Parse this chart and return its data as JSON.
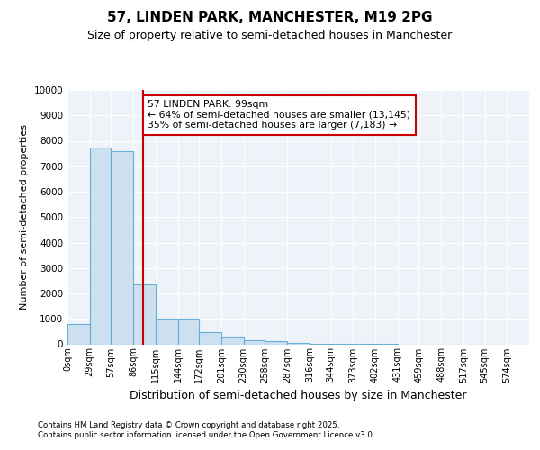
{
  "title1": "57, LINDEN PARK, MANCHESTER, M19 2PG",
  "title2": "Size of property relative to semi-detached houses in Manchester",
  "xlabel": "Distribution of semi-detached houses by size in Manchester",
  "ylabel": "Number of semi-detached properties",
  "annotation_line1": "57 LINDEN PARK: 99sqm",
  "annotation_line2": "← 64% of semi-detached houses are smaller (13,145)",
  "annotation_line3": "35% of semi-detached houses are larger (7,183) →",
  "footer1": "Contains HM Land Registry data © Crown copyright and database right 2025.",
  "footer2": "Contains public sector information licensed under the Open Government Licence v3.0.",
  "property_size": 99,
  "bar_left_edges": [
    0,
    29,
    57,
    86,
    115,
    144,
    172,
    201,
    230,
    258,
    287,
    316,
    344,
    373,
    402,
    431,
    459,
    488,
    517,
    545
  ],
  "bar_widths": [
    29,
    28,
    29,
    29,
    29,
    28,
    29,
    29,
    28,
    29,
    29,
    28,
    29,
    29,
    29,
    28,
    29,
    29,
    28,
    29
  ],
  "bar_heights": [
    800,
    7750,
    7600,
    2350,
    1020,
    1020,
    470,
    290,
    150,
    110,
    50,
    15,
    8,
    3,
    1,
    0,
    0,
    0,
    0,
    0
  ],
  "bar_color": "#cce0ef",
  "bar_edge_color": "#6aaed6",
  "vline_color": "#cc0000",
  "vline_x": 99,
  "annotation_box_color": "#cc0000",
  "background_color": "#eef3fa",
  "ylim": [
    0,
    10000
  ],
  "yticks": [
    0,
    1000,
    2000,
    3000,
    4000,
    5000,
    6000,
    7000,
    8000,
    9000,
    10000
  ],
  "tick_labels": [
    "0sqm",
    "29sqm",
    "57sqm",
    "86sqm",
    "115sqm",
    "144sqm",
    "172sqm",
    "201sqm",
    "230sqm",
    "258sqm",
    "287sqm",
    "316sqm",
    "344sqm",
    "373sqm",
    "402sqm",
    "431sqm",
    "459sqm",
    "488sqm",
    "517sqm",
    "545sqm",
    "574sqm"
  ]
}
